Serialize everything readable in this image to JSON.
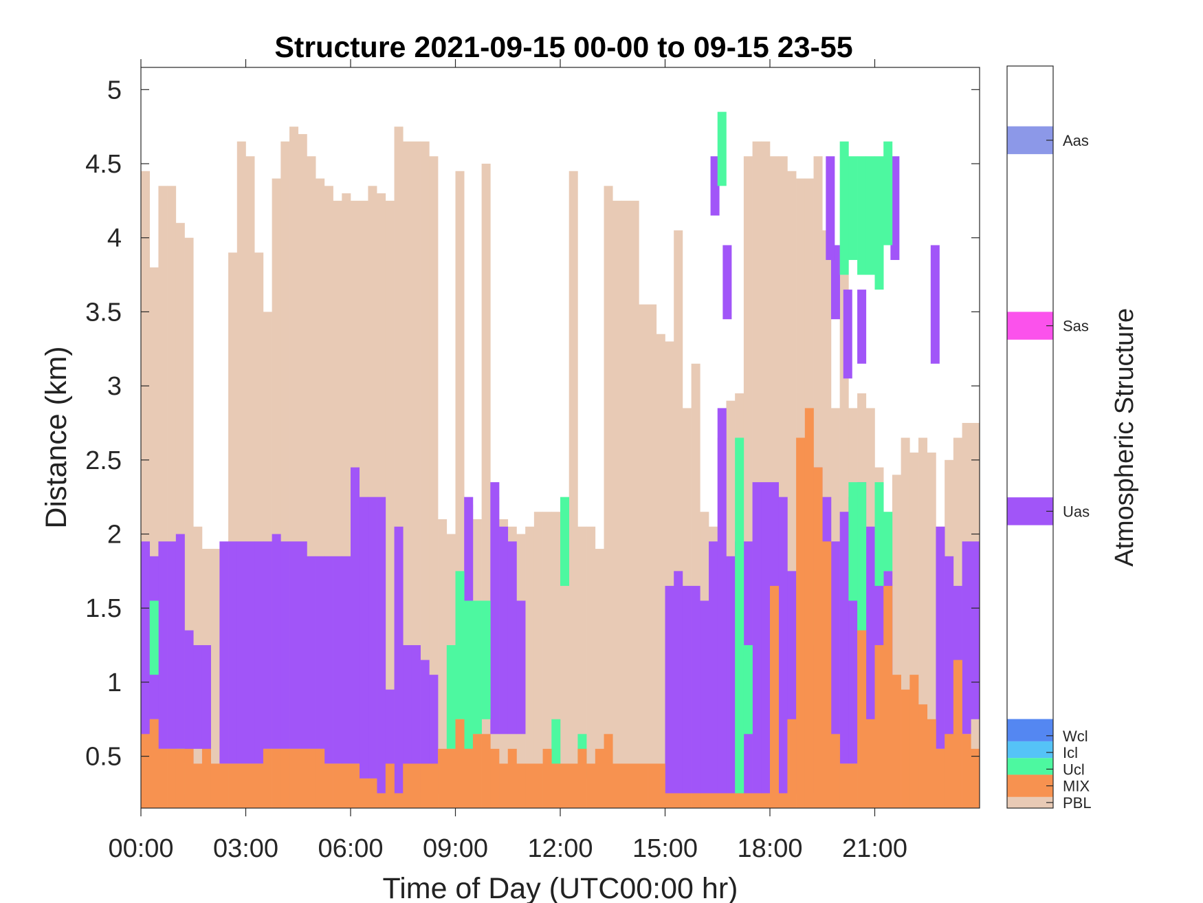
{
  "chart_data": {
    "type": "heatmap",
    "title": "Structure 2021-09-15 00-00 to 09-15 23-55",
    "xlabel": "Time of Day (UTC00:00 hr)",
    "ylabel": "Distance (km)",
    "xlim": [
      0,
      24
    ],
    "ylim": [
      0.15,
      5.15
    ],
    "xticks": [
      0,
      3,
      6,
      9,
      12,
      15,
      18,
      21
    ],
    "xtick_labels": [
      "00:00",
      "03:00",
      "06:00",
      "09:00",
      "12:00",
      "15:00",
      "18:00",
      "21:00"
    ],
    "yticks": [
      0.5,
      1,
      1.5,
      2,
      2.5,
      3,
      3.5,
      4,
      4.5,
      5
    ],
    "ytick_labels": [
      "0.5",
      "1",
      "1.5",
      "2",
      "2.5",
      "3",
      "3.5",
      "4",
      "4.5",
      "5"
    ],
    "colorbar": {
      "label": "Atmospheric Structure",
      "classes": [
        {
          "name": "PBL",
          "color": "#E8CAB5"
        },
        {
          "name": "MIX",
          "color": "#F79250"
        },
        {
          "name": "Ucl",
          "color": "#4DF8A0"
        },
        {
          "name": "Icl",
          "color": "#55C3F7"
        },
        {
          "name": "Wcl",
          "color": "#5487F2"
        },
        {
          "name": "Uas",
          "color": "#A155F8"
        },
        {
          "name": "Sas",
          "color": "#FB52EC"
        },
        {
          "name": "Aas",
          "color": "#8C98E8"
        }
      ]
    },
    "pbl_top": [
      [
        0.0,
        4.45
      ],
      [
        0.25,
        3.8
      ],
      [
        0.5,
        4.35
      ],
      [
        0.75,
        4.35
      ],
      [
        1.0,
        4.1
      ],
      [
        1.25,
        4.0
      ],
      [
        1.5,
        2.05
      ],
      [
        1.75,
        1.9
      ],
      [
        2.0,
        1.9
      ],
      [
        2.25,
        1.9
      ],
      [
        2.5,
        3.9
      ],
      [
        2.75,
        4.65
      ],
      [
        3.0,
        4.55
      ],
      [
        3.25,
        3.9
      ],
      [
        3.5,
        3.5
      ],
      [
        3.75,
        4.4
      ],
      [
        4.0,
        4.65
      ],
      [
        4.25,
        4.75
      ],
      [
        4.5,
        4.7
      ],
      [
        4.75,
        4.55
      ],
      [
        5.0,
        4.4
      ],
      [
        5.25,
        4.35
      ],
      [
        5.5,
        4.25
      ],
      [
        5.75,
        4.3
      ],
      [
        6.0,
        4.25
      ],
      [
        6.25,
        4.25
      ],
      [
        6.5,
        4.35
      ],
      [
        6.75,
        4.3
      ],
      [
        7.0,
        4.25
      ],
      [
        7.25,
        4.75
      ],
      [
        7.5,
        4.65
      ],
      [
        7.75,
        4.65
      ],
      [
        8.0,
        4.65
      ],
      [
        8.25,
        4.55
      ],
      [
        8.5,
        2.1
      ],
      [
        8.75,
        2.0
      ],
      [
        9.0,
        4.45
      ],
      [
        9.25,
        2.2
      ],
      [
        9.5,
        2.1
      ],
      [
        9.75,
        4.5
      ],
      [
        10.0,
        2.25
      ],
      [
        10.25,
        2.1
      ],
      [
        10.5,
        2.05
      ],
      [
        10.75,
        2.0
      ],
      [
        11.0,
        2.05
      ],
      [
        11.25,
        2.15
      ],
      [
        11.5,
        2.15
      ],
      [
        11.75,
        2.15
      ],
      [
        12.0,
        2.15
      ],
      [
        12.25,
        4.45
      ],
      [
        12.5,
        2.05
      ],
      [
        12.75,
        2.05
      ],
      [
        13.0,
        1.9
      ],
      [
        13.25,
        4.35
      ],
      [
        13.5,
        4.25
      ],
      [
        13.75,
        4.25
      ],
      [
        14.0,
        4.25
      ],
      [
        14.25,
        3.55
      ],
      [
        14.5,
        3.55
      ],
      [
        14.75,
        3.35
      ],
      [
        15.0,
        3.3
      ],
      [
        15.25,
        4.05
      ],
      [
        15.5,
        2.85
      ],
      [
        15.75,
        3.15
      ],
      [
        16.0,
        2.15
      ],
      [
        16.25,
        2.05
      ],
      [
        16.5,
        2.65
      ],
      [
        16.75,
        2.9
      ],
      [
        17.0,
        2.95
      ],
      [
        17.25,
        4.55
      ],
      [
        17.5,
        4.65
      ],
      [
        17.75,
        4.65
      ],
      [
        18.0,
        4.55
      ],
      [
        18.25,
        4.55
      ],
      [
        18.5,
        4.45
      ],
      [
        18.75,
        4.4
      ],
      [
        19.0,
        4.4
      ],
      [
        19.25,
        4.55
      ],
      [
        19.5,
        4.05
      ],
      [
        19.75,
        2.85
      ],
      [
        20.0,
        3.75
      ],
      [
        20.25,
        2.85
      ],
      [
        20.5,
        2.95
      ],
      [
        20.75,
        2.85
      ],
      [
        21.0,
        2.45
      ],
      [
        21.25,
        2.1
      ],
      [
        21.5,
        2.4
      ],
      [
        21.75,
        2.65
      ],
      [
        22.0,
        2.55
      ],
      [
        22.25,
        2.65
      ],
      [
        22.5,
        2.55
      ],
      [
        22.75,
        2.05
      ],
      [
        23.0,
        2.5
      ],
      [
        23.25,
        2.65
      ],
      [
        23.5,
        2.75
      ],
      [
        23.75,
        2.75
      ]
    ],
    "uas_segments": [
      [
        0.0,
        0.6,
        1.95
      ],
      [
        0.25,
        0.75,
        1.85
      ],
      [
        0.5,
        0.55,
        1.95
      ],
      [
        0.75,
        0.55,
        1.95
      ],
      [
        1.0,
        0.55,
        2.0
      ],
      [
        1.25,
        0.45,
        1.35
      ],
      [
        1.5,
        0.55,
        1.25
      ],
      [
        1.75,
        0.45,
        1.25
      ],
      [
        2.25,
        0.45,
        1.95
      ],
      [
        2.5,
        0.45,
        1.95
      ],
      [
        2.75,
        0.45,
        1.95
      ],
      [
        3.0,
        0.45,
        1.95
      ],
      [
        3.25,
        0.45,
        1.95
      ],
      [
        3.5,
        0.55,
        1.95
      ],
      [
        3.75,
        0.55,
        2.0
      ],
      [
        4.0,
        0.55,
        1.95
      ],
      [
        4.25,
        0.55,
        1.95
      ],
      [
        4.5,
        0.55,
        1.95
      ],
      [
        4.75,
        0.55,
        1.85
      ],
      [
        5.0,
        0.55,
        1.85
      ],
      [
        5.25,
        0.45,
        1.85
      ],
      [
        5.5,
        0.45,
        1.85
      ],
      [
        5.75,
        0.45,
        1.85
      ],
      [
        6.0,
        0.45,
        2.45
      ],
      [
        6.25,
        0.35,
        2.25
      ],
      [
        6.5,
        0.35,
        2.25
      ],
      [
        6.75,
        0.25,
        2.25
      ],
      [
        7.0,
        0.25,
        0.95
      ],
      [
        7.25,
        0.25,
        2.05
      ],
      [
        7.5,
        0.25,
        1.25
      ],
      [
        7.75,
        0.25,
        1.25
      ],
      [
        8.0,
        0.25,
        1.15
      ],
      [
        8.25,
        0.25,
        1.05
      ],
      [
        9.25,
        0.55,
        2.25
      ],
      [
        10.0,
        0.65,
        2.35
      ],
      [
        10.25,
        0.65,
        2.05
      ],
      [
        10.5,
        0.65,
        1.95
      ],
      [
        10.75,
        0.65,
        1.55
      ],
      [
        15.0,
        0.25,
        1.65
      ],
      [
        15.25,
        0.25,
        1.75
      ],
      [
        15.5,
        0.25,
        1.65
      ],
      [
        15.75,
        0.25,
        1.65
      ],
      [
        16.0,
        0.25,
        1.55
      ],
      [
        16.25,
        0.25,
        1.95
      ],
      [
        16.5,
        0.25,
        2.85
      ],
      [
        16.75,
        0.25,
        1.85
      ],
      [
        17.0,
        0.25,
        1.95
      ],
      [
        17.25,
        0.25,
        1.95
      ],
      [
        17.5,
        0.25,
        2.35
      ],
      [
        17.75,
        0.25,
        2.35
      ],
      [
        18.0,
        0.25,
        2.35
      ],
      [
        18.25,
        0.25,
        2.25
      ],
      [
        18.5,
        0.25,
        1.75
      ],
      [
        18.75,
        0.25,
        1.65
      ],
      [
        19.0,
        0.25,
        2.25
      ],
      [
        19.25,
        0.25,
        2.45
      ],
      [
        19.5,
        0.25,
        2.25
      ],
      [
        19.75,
        0.25,
        1.95
      ],
      [
        20.0,
        0.45,
        2.15
      ],
      [
        20.25,
        0.45,
        2.25
      ],
      [
        20.5,
        0.45,
        2.35
      ],
      [
        20.75,
        0.45,
        2.05
      ],
      [
        21.0,
        0.45,
        2.25
      ],
      [
        21.25,
        0.45,
        1.75
      ],
      [
        22.75,
        0.55,
        2.05
      ],
      [
        23.0,
        0.55,
        1.85
      ],
      [
        23.25,
        0.55,
        1.65
      ],
      [
        23.5,
        0.65,
        1.95
      ],
      [
        23.75,
        0.75,
        1.95
      ],
      [
        16.3,
        4.15,
        4.55
      ],
      [
        16.65,
        3.45,
        3.95
      ],
      [
        19.75,
        3.45,
        3.95
      ],
      [
        22.6,
        3.15,
        3.95
      ],
      [
        19.6,
        3.85,
        4.55
      ],
      [
        21.45,
        3.85,
        4.55
      ],
      [
        20.1,
        3.05,
        3.65
      ],
      [
        20.5,
        3.15,
        3.65
      ]
    ],
    "ucl_segments": [
      [
        0.25,
        1.05,
        1.55
      ],
      [
        1.0,
        0.25,
        0.55
      ],
      [
        8.75,
        0.55,
        1.25
      ],
      [
        9.0,
        0.75,
        1.75
      ],
      [
        9.25,
        0.55,
        1.55
      ],
      [
        9.5,
        0.65,
        1.55
      ],
      [
        9.75,
        0.75,
        1.55
      ],
      [
        12.0,
        1.65,
        2.25
      ],
      [
        11.75,
        0.25,
        0.75
      ],
      [
        12.5,
        0.35,
        0.65
      ],
      [
        17.0,
        0.25,
        2.65
      ],
      [
        17.25,
        0.65,
        1.25
      ],
      [
        19.25,
        1.25,
        1.75
      ],
      [
        20.25,
        1.55,
        2.35
      ],
      [
        20.5,
        1.15,
        2.35
      ],
      [
        21.0,
        1.65,
        2.35
      ],
      [
        21.25,
        1.75,
        2.15
      ],
      [
        20.0,
        3.75,
        4.65
      ],
      [
        20.25,
        3.85,
        4.55
      ],
      [
        20.5,
        3.75,
        4.55
      ],
      [
        20.75,
        3.75,
        4.55
      ],
      [
        21.0,
        3.65,
        4.55
      ],
      [
        21.25,
        3.95,
        4.65
      ],
      [
        16.5,
        4.35,
        4.85
      ]
    ],
    "mix_top": [
      [
        0.0,
        0.65
      ],
      [
        0.25,
        0.75
      ],
      [
        0.5,
        0.55
      ],
      [
        0.75,
        0.55
      ],
      [
        1.0,
        0.55
      ],
      [
        1.25,
        0.55
      ],
      [
        1.5,
        0.45
      ],
      [
        1.75,
        0.55
      ],
      [
        2.0,
        0.45
      ],
      [
        2.25,
        0.45
      ],
      [
        2.5,
        0.45
      ],
      [
        2.75,
        0.45
      ],
      [
        3.0,
        0.45
      ],
      [
        3.25,
        0.45
      ],
      [
        3.5,
        0.55
      ],
      [
        3.75,
        0.55
      ],
      [
        4.0,
        0.55
      ],
      [
        4.25,
        0.55
      ],
      [
        4.5,
        0.55
      ],
      [
        4.75,
        0.55
      ],
      [
        5.0,
        0.55
      ],
      [
        5.25,
        0.45
      ],
      [
        5.5,
        0.45
      ],
      [
        5.75,
        0.45
      ],
      [
        6.0,
        0.45
      ],
      [
        6.25,
        0.35
      ],
      [
        6.5,
        0.35
      ],
      [
        6.75,
        0.25
      ],
      [
        7.0,
        0.45
      ],
      [
        7.25,
        0.25
      ],
      [
        7.5,
        0.45
      ],
      [
        7.75,
        0.45
      ],
      [
        8.0,
        0.45
      ],
      [
        8.25,
        0.45
      ],
      [
        8.5,
        0.55
      ],
      [
        8.75,
        0.55
      ],
      [
        9.0,
        0.75
      ],
      [
        9.25,
        0.55
      ],
      [
        9.5,
        0.65
      ],
      [
        9.75,
        0.65
      ],
      [
        10.0,
        0.55
      ],
      [
        10.25,
        0.45
      ],
      [
        10.5,
        0.55
      ],
      [
        10.75,
        0.45
      ],
      [
        11.0,
        0.45
      ],
      [
        11.25,
        0.45
      ],
      [
        11.5,
        0.55
      ],
      [
        11.75,
        0.45
      ],
      [
        12.0,
        0.45
      ],
      [
        12.25,
        0.45
      ],
      [
        12.5,
        0.55
      ],
      [
        12.75,
        0.45
      ],
      [
        13.0,
        0.55
      ],
      [
        13.25,
        0.65
      ],
      [
        13.5,
        0.45
      ],
      [
        13.75,
        0.45
      ],
      [
        14.0,
        0.45
      ],
      [
        14.25,
        0.45
      ],
      [
        14.5,
        0.45
      ],
      [
        14.75,
        0.45
      ],
      [
        15.0,
        0.25
      ],
      [
        15.25,
        0.25
      ],
      [
        15.5,
        0.25
      ],
      [
        15.75,
        0.25
      ],
      [
        16.0,
        0.25
      ],
      [
        16.25,
        0.25
      ],
      [
        16.5,
        0.25
      ],
      [
        16.75,
        0.25
      ],
      [
        17.0,
        0.25
      ],
      [
        17.25,
        0.25
      ],
      [
        17.5,
        0.25
      ],
      [
        17.75,
        0.25
      ],
      [
        18.0,
        1.65
      ],
      [
        18.25,
        0.25
      ],
      [
        18.5,
        0.75
      ],
      [
        18.75,
        2.65
      ],
      [
        19.0,
        2.85
      ],
      [
        19.25,
        2.45
      ],
      [
        19.5,
        1.95
      ],
      [
        19.75,
        0.65
      ],
      [
        20.0,
        0.45
      ],
      [
        20.25,
        0.45
      ],
      [
        20.5,
        1.35
      ],
      [
        20.75,
        0.75
      ],
      [
        21.0,
        1.25
      ],
      [
        21.25,
        1.65
      ],
      [
        21.5,
        1.05
      ],
      [
        21.75,
        0.95
      ],
      [
        22.0,
        1.05
      ],
      [
        22.25,
        0.85
      ],
      [
        22.5,
        0.75
      ],
      [
        22.75,
        0.55
      ],
      [
        23.0,
        0.65
      ],
      [
        23.25,
        1.15
      ],
      [
        23.5,
        0.65
      ],
      [
        23.75,
        0.55
      ]
    ]
  }
}
